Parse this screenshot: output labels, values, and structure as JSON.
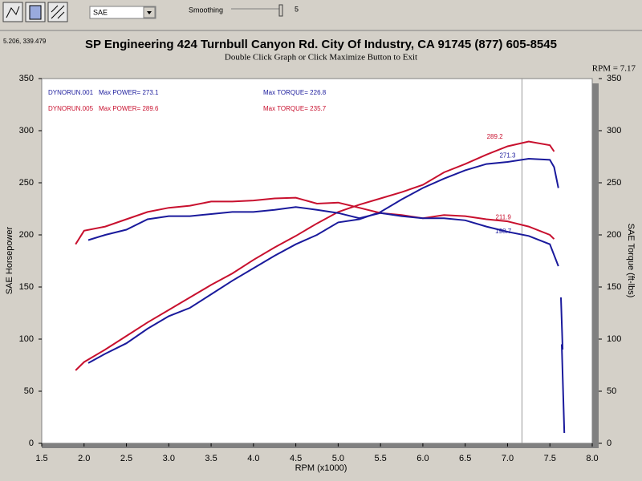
{
  "toolbar": {
    "unit": "SAE",
    "smoothing_label": "Smoothing",
    "smoothing": "5"
  },
  "chart_data": {
    "type": "line",
    "coords": "5.206, 339.479",
    "title": "SP Engineering 424 Turnbull Canyon Rd. City Of Industry, CA 91745 (877) 605-8545",
    "subtitle": "Double Click Graph or Click Maximize Button to Exit",
    "cursor": {
      "label": "RPM = 7.17",
      "x": 7.17
    },
    "xlabel": "RPM (x1000)",
    "ylabel": "SAE Horsepower",
    "y2label": "SAE Torque (ft-lbs)",
    "xlim": [
      1.5,
      8.0
    ],
    "xticks": [
      1.5,
      {
        "value": 2,
        "label": "2.0"
      },
      2.5,
      {
        "value": 3,
        "label": "3.0"
      },
      3.5,
      {
        "value": 4,
        "label": "4.0"
      },
      4.5,
      {
        "value": 5,
        "label": "5.0"
      },
      5.5,
      {
        "value": 6,
        "label": "6.0"
      },
      6.5,
      {
        "value": 7,
        "label": "7.0"
      },
      7.5,
      {
        "value": 8,
        "label": "8.0"
      }
    ],
    "ylim": [
      0,
      350
    ],
    "yticks": [
      0,
      50,
      100,
      150,
      200,
      250,
      300,
      350
    ],
    "y2lim": [
      0,
      350
    ],
    "y2ticks": [
      0,
      50,
      100,
      150,
      200,
      250,
      300,
      350
    ],
    "legend": [
      {
        "run": "DYNORUN.001",
        "power": "Max POWER= 273.1",
        "torque": "Max TORQUE= 226.8",
        "color": "#1a1a9c"
      },
      {
        "run": "DYNORUN.005",
        "power": "Max POWER= 289.6",
        "torque": "Max TORQUE= 235.7",
        "color": "#c8102e"
      }
    ],
    "series": [
      {
        "color": "#c8102e",
        "x": [
          1.9,
          2.0,
          2.25,
          2.5,
          2.75,
          3.0,
          3.25,
          3.5,
          3.75,
          4.0,
          4.25,
          4.5,
          4.75,
          5.0,
          5.25,
          5.5,
          5.75,
          6.0,
          6.25,
          6.5,
          6.75,
          7.0,
          7.25,
          7.5,
          7.55
        ],
        "values": [
          70,
          78,
          90,
          103,
          116,
          128,
          140,
          152,
          163,
          176,
          188,
          199,
          211,
          222,
          229,
          235,
          241,
          248,
          260,
          268,
          277,
          285,
          289.6,
          286,
          280
        ]
      },
      {
        "color": "#1a1a9c",
        "x": [
          2.05,
          2.25,
          2.5,
          2.75,
          3.0,
          3.25,
          3.5,
          3.75,
          4.0,
          4.25,
          4.5,
          4.75,
          5.0,
          5.25,
          5.5,
          5.75,
          6.0,
          6.25,
          6.5,
          6.75,
          7.0,
          7.25,
          7.5,
          7.55,
          7.6
        ],
        "values": [
          77,
          86,
          96,
          110,
          122,
          130,
          143,
          156,
          168,
          180,
          191,
          200,
          212,
          215,
          222,
          234,
          245,
          254,
          262,
          268,
          270,
          273.1,
          272,
          265,
          245
        ]
      },
      {
        "color": "#c8102e",
        "axis": "y2",
        "x": [
          1.9,
          2.0,
          2.25,
          2.5,
          2.75,
          3.0,
          3.25,
          3.5,
          3.75,
          4.0,
          4.25,
          4.5,
          4.75,
          5.0,
          5.25,
          5.5,
          5.75,
          6.0,
          6.25,
          6.5,
          6.75,
          7.0,
          7.25,
          7.5,
          7.55
        ],
        "values": [
          191,
          204,
          208,
          215,
          222,
          226,
          228,
          232,
          232,
          233,
          235,
          235.7,
          230,
          231,
          226,
          221,
          219,
          216,
          219,
          218,
          215,
          213,
          208,
          200,
          196
        ]
      },
      {
        "color": "#1a1a9c",
        "axis": "y2",
        "x": [
          2.05,
          2.25,
          2.5,
          2.75,
          3.0,
          3.25,
          3.5,
          3.75,
          4.0,
          4.25,
          4.5,
          4.75,
          5.0,
          5.25,
          5.5,
          5.75,
          6.0,
          6.25,
          6.5,
          6.75,
          7.0,
          7.25,
          7.5,
          7.6
        ],
        "values": [
          195,
          200,
          205,
          215,
          218,
          218,
          220,
          222,
          222,
          224,
          226.8,
          224,
          221,
          216,
          221,
          218,
          216,
          216,
          214,
          208,
          203,
          199,
          191,
          170
        ]
      },
      {
        "color": "#1a1a9c",
        "x": [
          7.63,
          7.65,
          7.64,
          7.67
        ],
        "values": [
          140,
          90,
          95,
          10
        ]
      }
    ],
    "labels": [
      {
        "text": "289.2",
        "x": 6.85,
        "y": 289.2,
        "color": "#c8102e"
      },
      {
        "text": "271.3",
        "x": 7.0,
        "y": 271.3,
        "color": "#1a1a9c"
      },
      {
        "text": "211.9",
        "x": 6.95,
        "y": 211.9,
        "color": "#c8102e"
      },
      {
        "text": "198.7",
        "x": 6.95,
        "y": 198.7,
        "color": "#1a1a9c"
      }
    ]
  }
}
